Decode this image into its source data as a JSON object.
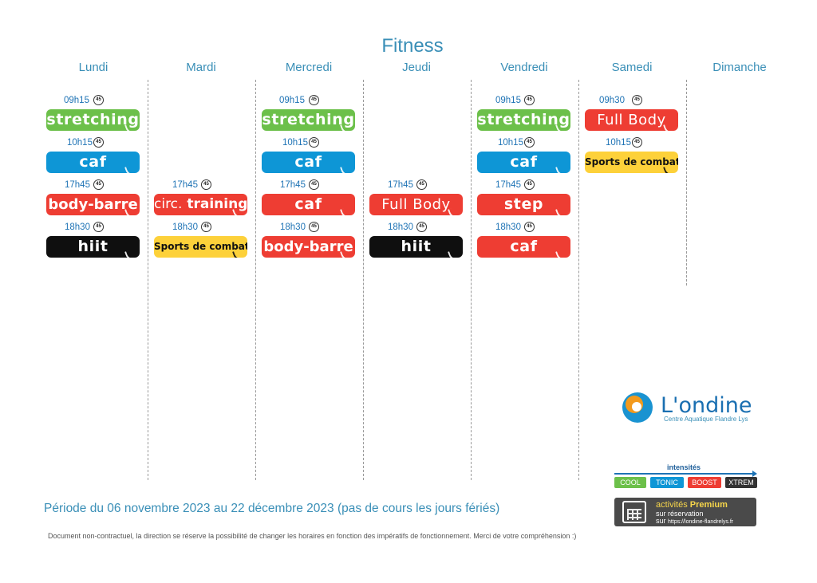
{
  "title": "Fitness",
  "days": [
    "Lundi",
    "Mardi",
    "Mercredi",
    "Jeudi",
    "Vendredi",
    "Samedi",
    "Dimanche"
  ],
  "colors": {
    "cool": "#6cc04a",
    "tonic": "#0e96d6",
    "boost": "#ee3d33",
    "xtrem": "#0f0f0f",
    "combat": "#fdd13a"
  },
  "duration_icon": "45",
  "sessions": [
    {
      "day": "Lundi",
      "time": "09h15",
      "name": "stretching",
      "intensity": "cool"
    },
    {
      "day": "Lundi",
      "time": "10h15",
      "name": "caf",
      "intensity": "tonic"
    },
    {
      "day": "Lundi",
      "time": "17h45",
      "name": "body-barre",
      "intensity": "boost"
    },
    {
      "day": "Lundi",
      "time": "18h30",
      "name": "hiit",
      "intensity": "xtrem"
    },
    {
      "day": "Mardi",
      "time": "17h45",
      "name_part1": "circ.",
      "name_part2": "training",
      "intensity": "boost"
    },
    {
      "day": "Mardi",
      "time": "18h30",
      "name": "Sports de combat",
      "intensity": "combat"
    },
    {
      "day": "Mercredi",
      "time": "09h15",
      "name": "stretching",
      "intensity": "cool"
    },
    {
      "day": "Mercredi",
      "time": "10h15",
      "name": "caf",
      "intensity": "tonic"
    },
    {
      "day": "Mercredi",
      "time": "17h45",
      "name": "caf",
      "intensity": "boost"
    },
    {
      "day": "Mercredi",
      "time": "18h30",
      "name": "body-barre",
      "intensity": "boost"
    },
    {
      "day": "Jeudi",
      "time": "17h45",
      "name": "Full Body",
      "intensity": "boost"
    },
    {
      "day": "Jeudi",
      "time": "18h30",
      "name": "hiit",
      "intensity": "xtrem"
    },
    {
      "day": "Vendredi",
      "time": "09h15",
      "name": "stretching",
      "intensity": "cool"
    },
    {
      "day": "Vendredi",
      "time": "10h15",
      "name": "caf",
      "intensity": "tonic"
    },
    {
      "day": "Vendredi",
      "time": "17h45",
      "name": "step",
      "intensity": "boost"
    },
    {
      "day": "Vendredi",
      "time": "18h30",
      "name": "caf",
      "intensity": "boost"
    },
    {
      "day": "Samedi",
      "time": "09h30",
      "name": "Full Body",
      "intensity": "boost"
    },
    {
      "day": "Samedi",
      "time": "10h15",
      "name": "Sports de combat",
      "intensity": "combat"
    }
  ],
  "logo": {
    "name": "L'ondine",
    "subtitle": "Centre Aquatique Flandre Lys"
  },
  "intensities": {
    "title": "intensités",
    "levels": [
      "COOL",
      "TONIC",
      "BOOST",
      "XTREM"
    ]
  },
  "premium": {
    "line1_a": "activités ",
    "line1_b": "Premium",
    "line2": "sur réservation",
    "line3_a": "sur",
    "line3_url": "https://londine-flandrelys.fr"
  },
  "period": "Période du 06 novembre 2023 au 22 décembre 2023 (pas de cours les jours fériés)",
  "disclaimer": "Document non-contractuel, la direction se réserve la possibilité de changer les horaires en fonction des impératifs de fonctionnement. Merci de votre compréhension :)"
}
